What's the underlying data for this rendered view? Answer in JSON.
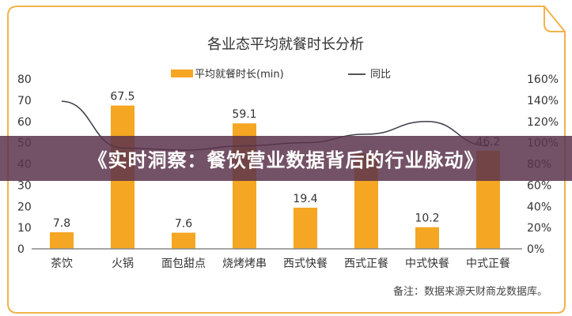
{
  "banner": {
    "text": "《实时洞察：餐饮营业数据背后的行业脉动》"
  },
  "footnote": "备注：数据来源天财商龙数据库。",
  "colors": {
    "bar": "#F5A623",
    "line": "#3d3d4a",
    "border": "#F2B24A",
    "axis": "#888888",
    "text": "#333333"
  },
  "chart_data": {
    "type": "bar",
    "title": "各业态平均就餐时长分析",
    "categories": [
      "茶饮",
      "火锅",
      "面包甜点",
      "烧烤烤串",
      "西式快餐",
      "西式正餐",
      "中式快餐",
      "中式正餐"
    ],
    "series": [
      {
        "name": "平均就餐时长(min)",
        "type": "bar",
        "axis": "left",
        "values": [
          7.8,
          67.5,
          7.6,
          59.1,
          19.4,
          45,
          10.2,
          46.2
        ],
        "labels": [
          "7.8",
          "67.5",
          "7.6",
          "59.1",
          "19.4",
          "",
          "10.2",
          "46.2"
        ]
      },
      {
        "name": "同比",
        "type": "line",
        "axis": "right",
        "values": [
          139,
          95,
          93,
          97,
          100,
          108,
          120,
          97
        ]
      }
    ],
    "left_axis": {
      "ticks": [
        "0",
        "10",
        "20",
        "30",
        "40",
        "50",
        "60",
        "70",
        "80"
      ],
      "ylim": [
        0,
        80
      ]
    },
    "right_axis": {
      "ticks": [
        "0%",
        "20%",
        "40%",
        "60%",
        "80%",
        "100%",
        "120%",
        "140%",
        "160%"
      ],
      "ylim": [
        0,
        160
      ]
    },
    "legend": {
      "position": "top",
      "entries": [
        "平均就餐时长(min)",
        "同比"
      ]
    },
    "grid": false
  }
}
